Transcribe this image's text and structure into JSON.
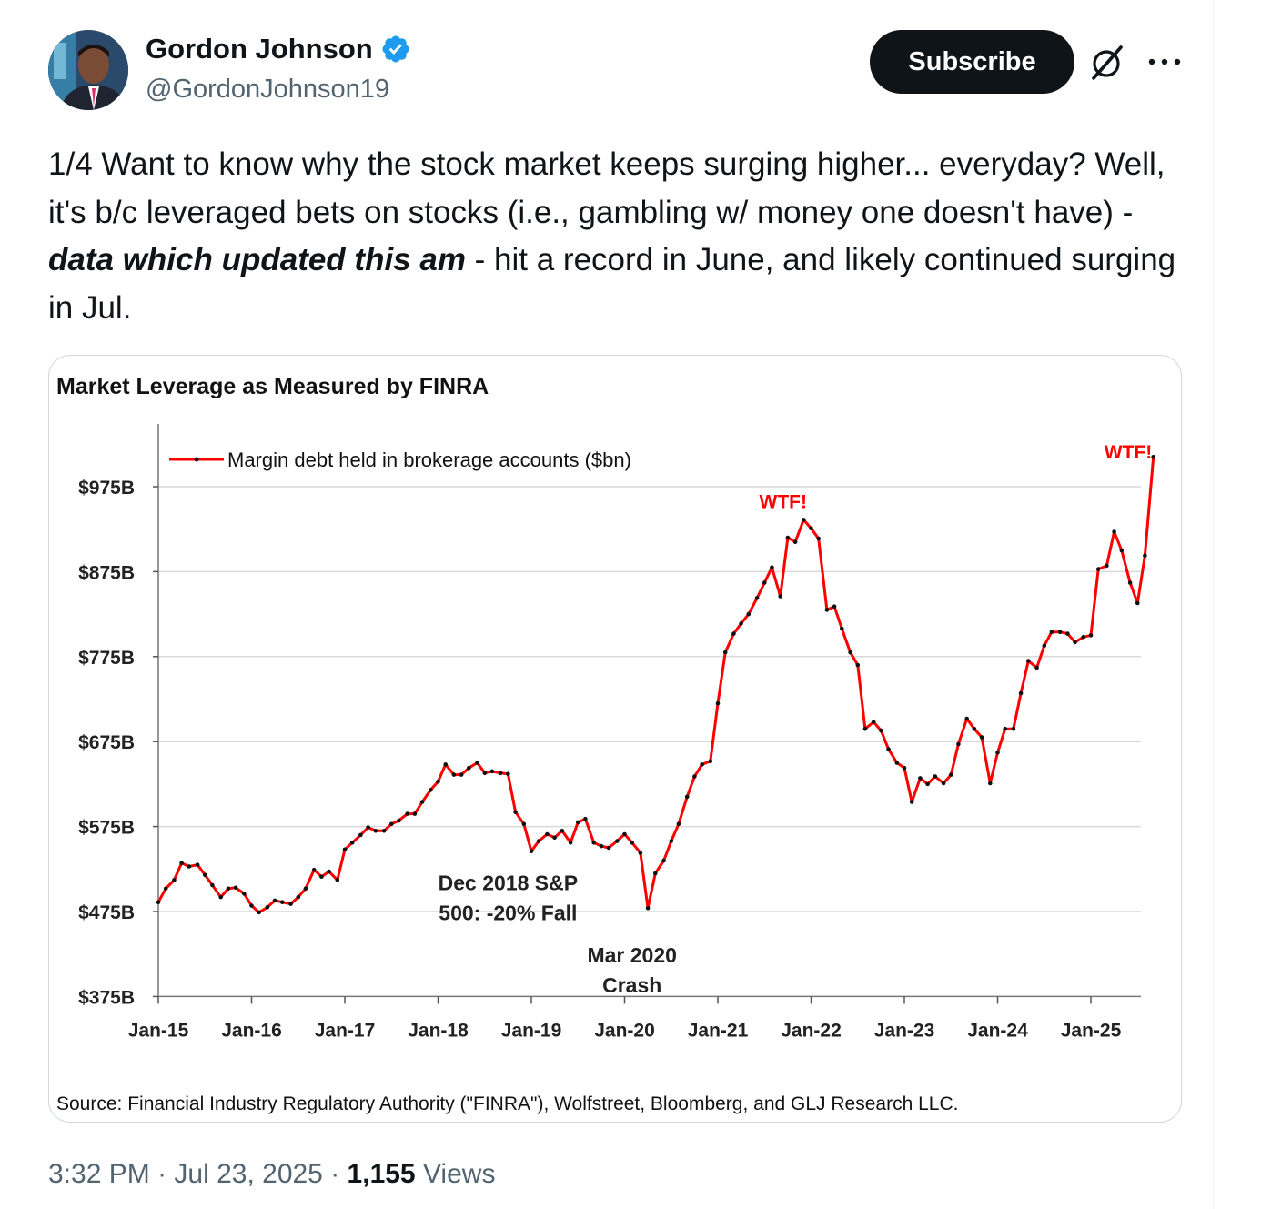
{
  "author": {
    "display_name": "Gordon Johnson",
    "handle": "@GordonJohnson19",
    "verified_icon": "verified-badge-icon",
    "avatar_icon": "avatar"
  },
  "actions": {
    "subscribe_label": "Subscribe",
    "grok_icon": "grok-icon",
    "more_icon": "more-options-icon"
  },
  "tweet": {
    "text_part1": "1/4 Want to know why the stock market keeps surging higher... everyday? Well, it's b/c leveraged bets on stocks (i.e., gambling w/ money one doesn't have) - ",
    "text_emphasis": "data which updated this am",
    "text_part2": " - hit a record in June, and likely continued surging in Jul."
  },
  "meta": {
    "time": "3:32 PM",
    "separator": " · ",
    "date": "Jul 23, 2025",
    "views_count": "1,155",
    "views_label": "Views"
  },
  "chart_data": {
    "type": "line",
    "title": "Market Leverage as Measured by FINRA",
    "legend": "Margin debt held in brokerage accounts ($bn)",
    "legend_position": "top-left",
    "series_color": "#ff0000",
    "ylim": [
      375,
      1050
    ],
    "y_ticks": [
      375,
      475,
      575,
      675,
      775,
      875,
      975
    ],
    "y_tick_labels": [
      "$375B",
      "$475B",
      "$575B",
      "$675B",
      "$775B",
      "$875B",
      "$975B"
    ],
    "x_ticks": [
      2015,
      2016,
      2017,
      2018,
      2019,
      2020,
      2021,
      2022,
      2023,
      2024,
      2025
    ],
    "x_tick_labels": [
      "Jan-15",
      "Jan-16",
      "Jan-17",
      "Jan-18",
      "Jan-19",
      "Jan-20",
      "Jan-21",
      "Jan-22",
      "Jan-23",
      "Jan-24",
      "Jan-25"
    ],
    "grid": "horizontal",
    "source": "Source: Financial Industry Regulatory Authority (\"FINRA\"), Wolfstreet, Bloomberg, and GLJ Research LLC.",
    "annotations": [
      {
        "lines": [
          "Dec 2018 S&P",
          "500: -20% Fall"
        ],
        "x": 2018.75,
        "y": 500
      },
      {
        "lines": [
          "Mar 2020",
          "Crash"
        ],
        "x": 2020.08,
        "y": 415
      },
      {
        "lines": [
          "WTF!"
        ],
        "x": 2021.7,
        "y": 950,
        "color": "#ff0000"
      },
      {
        "lines": [
          "WTF!"
        ],
        "x": 2025.4,
        "y": 1008,
        "color": "#ff0000"
      }
    ],
    "points": [
      [
        2015.0,
        486
      ],
      [
        2015.08,
        502
      ],
      [
        2015.17,
        512
      ],
      [
        2015.25,
        532
      ],
      [
        2015.33,
        528
      ],
      [
        2015.42,
        530
      ],
      [
        2015.5,
        518
      ],
      [
        2015.58,
        506
      ],
      [
        2015.67,
        492
      ],
      [
        2015.75,
        502
      ],
      [
        2015.83,
        503
      ],
      [
        2015.92,
        496
      ],
      [
        2016.0,
        482
      ],
      [
        2016.08,
        474
      ],
      [
        2016.17,
        480
      ],
      [
        2016.25,
        488
      ],
      [
        2016.33,
        486
      ],
      [
        2016.42,
        484
      ],
      [
        2016.5,
        492
      ],
      [
        2016.58,
        502
      ],
      [
        2016.67,
        524
      ],
      [
        2016.75,
        516
      ],
      [
        2016.83,
        522
      ],
      [
        2016.92,
        512
      ],
      [
        2017.0,
        548
      ],
      [
        2017.08,
        556
      ],
      [
        2017.17,
        565
      ],
      [
        2017.25,
        574
      ],
      [
        2017.33,
        570
      ],
      [
        2017.42,
        570
      ],
      [
        2017.5,
        578
      ],
      [
        2017.58,
        582
      ],
      [
        2017.67,
        590
      ],
      [
        2017.75,
        590
      ],
      [
        2017.83,
        604
      ],
      [
        2017.92,
        618
      ],
      [
        2018.0,
        628
      ],
      [
        2018.08,
        648
      ],
      [
        2018.17,
        636
      ],
      [
        2018.25,
        636
      ],
      [
        2018.33,
        644
      ],
      [
        2018.42,
        650
      ],
      [
        2018.5,
        638
      ],
      [
        2018.58,
        640
      ],
      [
        2018.67,
        638
      ],
      [
        2018.75,
        637
      ],
      [
        2018.83,
        592
      ],
      [
        2018.92,
        578
      ],
      [
        2019.0,
        546
      ],
      [
        2019.08,
        558
      ],
      [
        2019.17,
        566
      ],
      [
        2019.25,
        562
      ],
      [
        2019.33,
        570
      ],
      [
        2019.42,
        556
      ],
      [
        2019.5,
        580
      ],
      [
        2019.58,
        584
      ],
      [
        2019.67,
        556
      ],
      [
        2019.75,
        552
      ],
      [
        2019.83,
        550
      ],
      [
        2019.92,
        558
      ],
      [
        2020.0,
        566
      ],
      [
        2020.08,
        556
      ],
      [
        2020.17,
        544
      ],
      [
        2020.25,
        479
      ],
      [
        2020.33,
        520
      ],
      [
        2020.42,
        535
      ],
      [
        2020.5,
        558
      ],
      [
        2020.58,
        578
      ],
      [
        2020.67,
        610
      ],
      [
        2020.75,
        634
      ],
      [
        2020.83,
        648
      ],
      [
        2020.92,
        652
      ],
      [
        2021.0,
        720
      ],
      [
        2021.08,
        780
      ],
      [
        2021.17,
        802
      ],
      [
        2021.25,
        814
      ],
      [
        2021.33,
        825
      ],
      [
        2021.42,
        844
      ],
      [
        2021.5,
        862
      ],
      [
        2021.58,
        880
      ],
      [
        2021.67,
        846
      ],
      [
        2021.75,
        915
      ],
      [
        2021.83,
        910
      ],
      [
        2021.92,
        936
      ],
      [
        2022.0,
        926
      ],
      [
        2022.08,
        914
      ],
      [
        2022.17,
        830
      ],
      [
        2022.25,
        834
      ],
      [
        2022.33,
        808
      ],
      [
        2022.42,
        780
      ],
      [
        2022.5,
        765
      ],
      [
        2022.58,
        690
      ],
      [
        2022.67,
        698
      ],
      [
        2022.75,
        688
      ],
      [
        2022.83,
        666
      ],
      [
        2022.92,
        650
      ],
      [
        2023.0,
        644
      ],
      [
        2023.08,
        604
      ],
      [
        2023.17,
        632
      ],
      [
        2023.25,
        625
      ],
      [
        2023.33,
        634
      ],
      [
        2023.42,
        626
      ],
      [
        2023.5,
        636
      ],
      [
        2023.58,
        672
      ],
      [
        2023.67,
        702
      ],
      [
        2023.75,
        690
      ],
      [
        2023.83,
        680
      ],
      [
        2023.92,
        626
      ],
      [
        2024.0,
        662
      ],
      [
        2024.08,
        690
      ],
      [
        2024.17,
        690
      ],
      [
        2024.25,
        732
      ],
      [
        2024.33,
        770
      ],
      [
        2024.42,
        762
      ],
      [
        2024.5,
        788
      ],
      [
        2024.58,
        804
      ],
      [
        2024.67,
        804
      ],
      [
        2024.75,
        802
      ],
      [
        2024.83,
        792
      ],
      [
        2024.92,
        798
      ],
      [
        2025.0,
        800
      ],
      [
        2025.08,
        878
      ],
      [
        2025.17,
        882
      ],
      [
        2025.25,
        922
      ],
      [
        2025.33,
        900
      ],
      [
        2025.42,
        862
      ],
      [
        2025.5,
        838
      ],
      [
        2025.58,
        894
      ],
      [
        2025.67,
        1010
      ]
    ]
  }
}
